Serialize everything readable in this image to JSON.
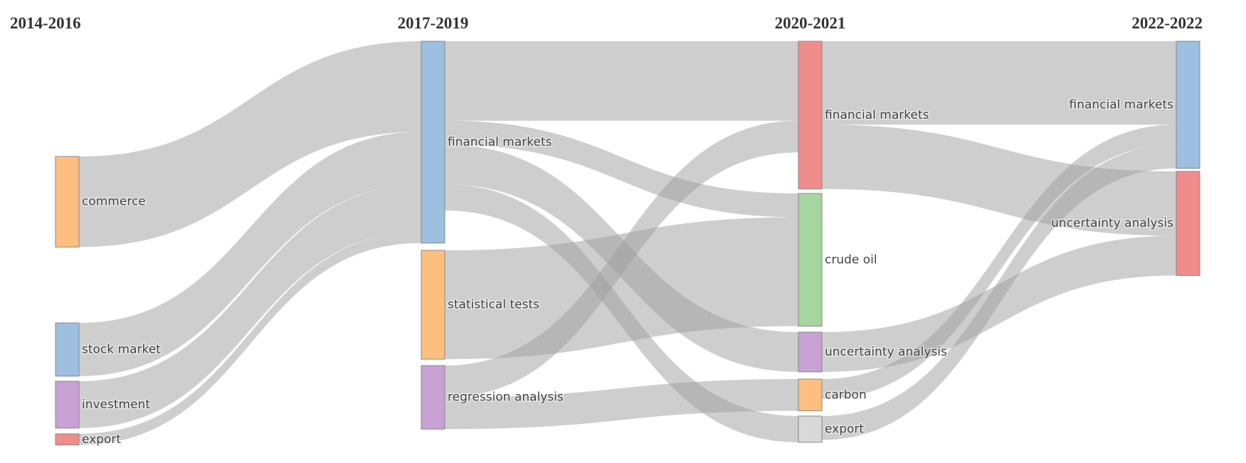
{
  "chart_data": {
    "type": "sankey",
    "link_color": "#9e9e9e",
    "columns": [
      {
        "title": "2014-2016",
        "nodes": [
          {
            "name": "commerce",
            "color": "#fdbf7f"
          },
          {
            "name": "stock market",
            "color": "#9dbfe0"
          },
          {
            "name": "investment",
            "color": "#c8a2d4"
          },
          {
            "name": "export",
            "color": "#f08c8c"
          }
        ],
        "links": [
          {
            "from": "commerce",
            "to": "financial markets",
            "value": 114
          },
          {
            "from": "stock market",
            "to": "financial markets",
            "value": 67
          },
          {
            "from": "investment",
            "to": "financial markets",
            "value": 59
          },
          {
            "from": "export",
            "to": "financial markets",
            "value": 14
          }
        ]
      },
      {
        "title": "2017-2019",
        "nodes": [
          {
            "name": "financial markets",
            "color": "#9dbfe0"
          },
          {
            "name": "statistical tests",
            "color": "#fdbf7f"
          },
          {
            "name": "regression analysis",
            "color": "#c8a2d4"
          }
        ],
        "links": [
          {
            "from": "financial markets",
            "to": "financial markets",
            "value": 100
          },
          {
            "from": "financial markets",
            "to": "crude oil",
            "value": 30
          },
          {
            "from": "financial markets",
            "to": "uncertainty analysis",
            "value": 50
          },
          {
            "from": "financial markets",
            "to": "export",
            "value": 33
          },
          {
            "from": "statistical tests",
            "to": "crude oil",
            "value": 137
          },
          {
            "from": "regression analysis",
            "to": "financial markets",
            "value": 40
          },
          {
            "from": "regression analysis",
            "to": "carbon",
            "value": 40
          }
        ]
      },
      {
        "title": "2020-2021",
        "nodes": [
          {
            "name": "financial markets",
            "color": "#f08c8c"
          },
          {
            "name": "crude oil",
            "color": "#a5d6a0"
          },
          {
            "name": "uncertainty analysis",
            "color": "#c8a2d4"
          },
          {
            "name": "carbon",
            "color": "#fdbf7f"
          },
          {
            "name": "export",
            "color": "#d9d9d9"
          }
        ],
        "links": [
          {
            "from": "financial markets",
            "to": "financial markets",
            "value": 105
          },
          {
            "from": "financial markets",
            "to": "uncertainty analysis",
            "value": 81
          },
          {
            "from": "uncertainty analysis",
            "to": "uncertainty analysis",
            "value": 50
          },
          {
            "from": "carbon",
            "to": "financial markets",
            "value": 25
          },
          {
            "from": "export",
            "to": "financial markets",
            "value": 30
          }
        ]
      },
      {
        "title": "2022-2022",
        "nodes": [
          {
            "name": "financial markets",
            "color": "#9dbfe0"
          },
          {
            "name": "uncertainty analysis",
            "color": "#f08c8c"
          }
        ],
        "links": []
      }
    ]
  }
}
